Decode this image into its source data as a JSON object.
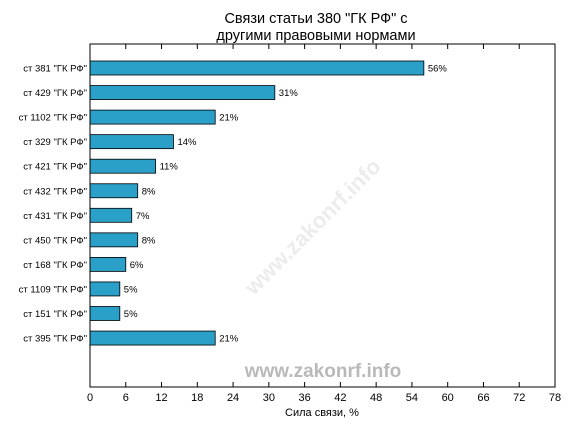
{
  "chart_data": {
    "type": "bar",
    "orientation": "horizontal",
    "title_lines": [
      "Связи статьи 380 \"ГК РФ\" с",
      "другими правовыми нормами"
    ],
    "xlabel": "Сила связи, %",
    "xlim": [
      0,
      78
    ],
    "xticks": [
      "0",
      "6",
      "12",
      "18",
      "24",
      "30",
      "36",
      "42",
      "48",
      "54",
      "60",
      "66",
      "72",
      "78"
    ],
    "categories": [
      "ст 381 \"ГК РФ\"",
      "ст 429 \"ГК РФ\"",
      "ст 1102 \"ГК РФ\"",
      "ст 329 \"ГК РФ\"",
      "ст 421 \"ГК РФ\"",
      "ст 432 \"ГК РФ\"",
      "ст 431 \"ГК РФ\"",
      "ст 450 \"ГК РФ\"",
      "ст 168 \"ГК РФ\"",
      "ст 1109 \"ГК РФ\"",
      "ст 151 \"ГК РФ\"",
      "ст 395 \"ГК РФ\""
    ],
    "values": [
      56,
      31,
      21,
      14,
      11,
      8,
      7,
      8,
      6,
      5,
      5,
      21
    ],
    "value_labels": [
      "56%",
      "31%",
      "21%",
      "14%",
      "11%",
      "8%",
      "7%",
      "8%",
      "6%",
      "5%",
      "5%",
      "21%"
    ],
    "bar_color": "#2a9fc7",
    "bar_edge_color": "#000000",
    "grid": false
  },
  "watermark": {
    "text": "www.zakonrf.info",
    "diagonal_text": "www.zakonrf.info"
  }
}
